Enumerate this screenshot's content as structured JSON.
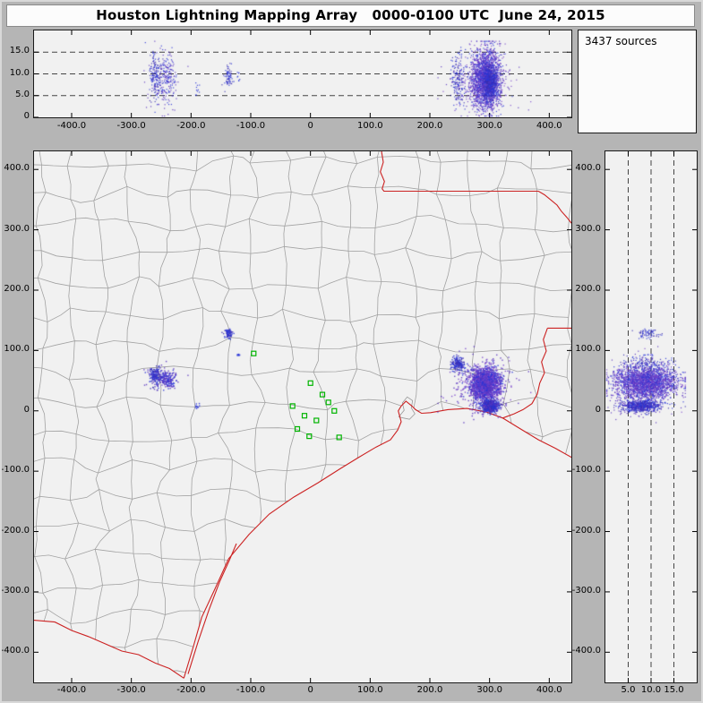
{
  "window": {
    "title": "Houston Lightning Mapping Array   0000-0100 UTC  June 24, 2015"
  },
  "sources_panel": {
    "label": "3437 sources"
  },
  "chart_data": {
    "type": "scatter",
    "title": "Houston Lightning Mapping Array",
    "time_window_utc": "0000-0100 UTC",
    "date": "June 24, 2015",
    "total_sources": 3437,
    "xlim_km": [
      -463,
      437
    ],
    "ylim_km": [
      -450,
      430
    ],
    "alt_lim_km": [
      0,
      20
    ],
    "x_ticks": [
      {
        "v": -400,
        "label": "-400.0"
      },
      {
        "v": -300,
        "label": "-300.0"
      },
      {
        "v": -200,
        "label": "-200.0"
      },
      {
        "v": -100,
        "label": "-100.0"
      },
      {
        "v": 0,
        "label": "0"
      },
      {
        "v": 100,
        "label": "100.0"
      },
      {
        "v": 200,
        "label": "200.0"
      },
      {
        "v": 300,
        "label": "300.0"
      },
      {
        "v": 400,
        "label": "400.0"
      }
    ],
    "y_ticks": [
      {
        "v": 400,
        "label": "400.0"
      },
      {
        "v": 300,
        "label": "300.0"
      },
      {
        "v": 200,
        "label": "200.0"
      },
      {
        "v": 100,
        "label": "100.0"
      },
      {
        "v": 0,
        "label": "0"
      },
      {
        "v": -100,
        "label": "-100.0"
      },
      {
        "v": -200,
        "label": "-200.0"
      },
      {
        "v": -300,
        "label": "-300.0"
      },
      {
        "v": -400,
        "label": "-400.0"
      }
    ],
    "alt_ticks_top_panel": [
      {
        "v": 15,
        "label": "15.0"
      },
      {
        "v": 10,
        "label": "10.0"
      },
      {
        "v": 5,
        "label": "5.0"
      },
      {
        "v": 0,
        "label": "0"
      }
    ],
    "alt_ticks_right_panel": [
      {
        "v": 5,
        "label": "5.0"
      },
      {
        "v": 10,
        "label": "10.0"
      },
      {
        "v": 15,
        "label": "15.0"
      }
    ],
    "alt_dashed_lines_km": [
      5,
      10,
      15
    ],
    "colors": {
      "county_line": "#a2a2a2",
      "state_border": "#cc2222",
      "station_marker": "#00b400",
      "panel_background": "#f1f1f1",
      "source_dot_blue": "#2a35d8",
      "source_dot_violet": "#6a3cc4"
    },
    "clusters": [
      {
        "name": "west-storm-a",
        "ew": -259,
        "ns": 59,
        "sd_ew": 5,
        "sd_ns": 7,
        "alt": 9.5,
        "sd_alt": 2.8,
        "n": 170,
        "colors": [
          "#2a35d8",
          "#3b2fb3"
        ]
      },
      {
        "name": "west-storm-b",
        "ew": -240,
        "ns": 51,
        "sd_ew": 6,
        "sd_ns": 6,
        "alt": 9.0,
        "sd_alt": 3.0,
        "n": 150,
        "colors": [
          "#2a35d8",
          "#5a35c0"
        ]
      },
      {
        "name": "west-storm-halo",
        "ew": -250,
        "ns": 55,
        "sd_ew": 14,
        "sd_ns": 10,
        "alt": 8.0,
        "sd_alt": 3.5,
        "n": 60,
        "colors": [
          "#5a35c0"
        ]
      },
      {
        "name": "central-north-cell",
        "ew": -137,
        "ns": 128,
        "sd_ew": 3,
        "sd_ns": 4,
        "alt": 9.5,
        "sd_alt": 1.4,
        "n": 70,
        "colors": [
          "#2a35d8",
          "#3b2fb3"
        ]
      },
      {
        "name": "isolated-west-dots",
        "ew": -190,
        "ns": 8,
        "sd_ew": 2,
        "sd_ns": 2,
        "alt": 6.5,
        "sd_alt": 0.8,
        "n": 10,
        "colors": [
          "#2a35d8"
        ]
      },
      {
        "name": "isolated-mid-dots",
        "ew": -120,
        "ns": 93,
        "sd_ew": 1.5,
        "sd_ns": 1.5,
        "alt": 9.0,
        "sd_alt": 0.7,
        "n": 8,
        "colors": [
          "#2a35d8"
        ]
      },
      {
        "name": "east-north-cell",
        "ew": 247,
        "ns": 78,
        "sd_ew": 6,
        "sd_ns": 6,
        "alt": 8.5,
        "sd_alt": 3.0,
        "n": 160,
        "colors": [
          "#2a35d8",
          "#3b2fb3"
        ]
      },
      {
        "name": "east-main-storm",
        "ew": 293,
        "ns": 45,
        "sd_ew": 13,
        "sd_ns": 13,
        "alt": 9.0,
        "sd_alt": 3.4,
        "n": 1900,
        "colors": [
          "#5a35c0",
          "#2a35d8",
          "#7a45cc"
        ]
      },
      {
        "name": "east-main-halo",
        "ew": 285,
        "ns": 40,
        "sd_ew": 28,
        "sd_ns": 22,
        "alt": 7.0,
        "sd_alt": 3.0,
        "n": 220,
        "colors": [
          "#7a45cc",
          "#5a35c0"
        ]
      },
      {
        "name": "east-south-cell",
        "ew": 301,
        "ns": 8,
        "sd_ew": 7,
        "sd_ns": 5,
        "alt": 8.0,
        "sd_alt": 2.2,
        "n": 609,
        "colors": [
          "#2a35d8",
          "#3b2fb3"
        ]
      },
      {
        "name": "east-south-halo",
        "ew": 295,
        "ns": 5,
        "sd_ew": 18,
        "sd_ns": 8,
        "alt": 7.0,
        "sd_alt": 3.0,
        "n": 80,
        "colors": [
          "#5a35c0"
        ]
      }
    ],
    "stations_km": [
      [
        -95,
        95
      ],
      [
        0,
        46
      ],
      [
        20,
        27
      ],
      [
        -30,
        8
      ],
      [
        -10,
        -8
      ],
      [
        10,
        -16
      ],
      [
        -22,
        -30
      ],
      [
        -2,
        -42
      ],
      [
        40,
        0
      ],
      [
        48,
        -44
      ],
      [
        30,
        14
      ]
    ]
  }
}
